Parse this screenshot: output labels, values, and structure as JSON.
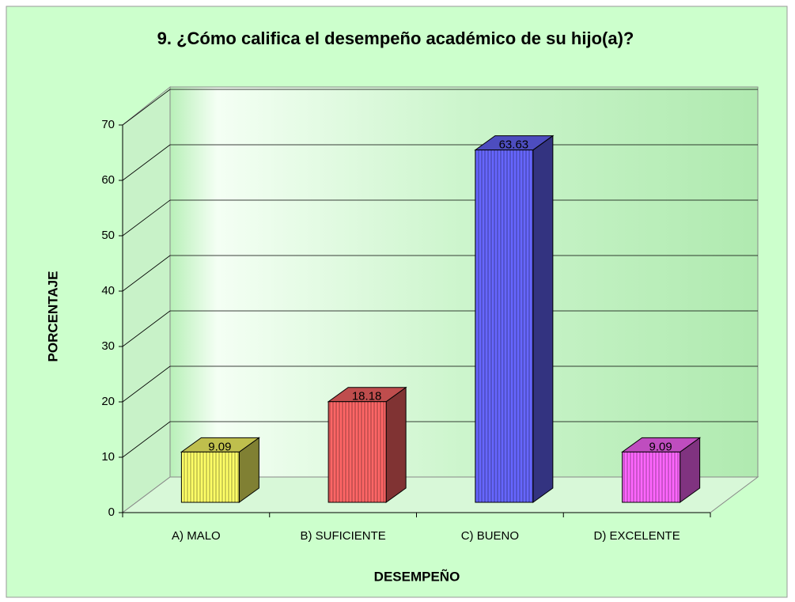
{
  "chart_data": {
    "type": "bar3d",
    "title": "9. ¿Cómo califica el desempeño académico de su hijo(a)?",
    "xlabel": "DESEMPEÑO",
    "ylabel": "PORCENTAJE",
    "categories": [
      "A) MALO",
      "B) SUFICIENTE",
      "C) BUENO",
      "D) EXCELENTE"
    ],
    "values": [
      9.09,
      18.18,
      63.63,
      9.09
    ],
    "colors": [
      "#ffff66",
      "#ff6666",
      "#6666ff",
      "#ff66ff"
    ],
    "ylim": [
      0,
      70
    ],
    "yticks": [
      0,
      10,
      20,
      30,
      40,
      50,
      60,
      70
    ],
    "grid": true
  }
}
